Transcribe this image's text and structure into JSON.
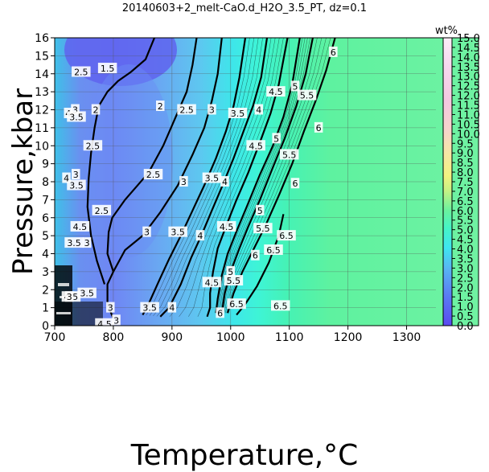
{
  "chart_data": {
    "type": "contour",
    "title": "20140603+2_melt-CaO.d_H2O_3.5_PT, dz=0.1",
    "xlabel": "Temperature,°C",
    "ylabel": "Pressure,kbar",
    "xlim": [
      700,
      1350
    ],
    "ylim": [
      0,
      16
    ],
    "xticks": [
      700,
      800,
      900,
      1000,
      1100,
      1200,
      1300
    ],
    "yticks": [
      0,
      1,
      2,
      3,
      4,
      5,
      6,
      7,
      8,
      9,
      10,
      11,
      12,
      13,
      14,
      15,
      16
    ],
    "grid": true,
    "colorbar": {
      "label": "wt%",
      "min": 0.0,
      "max": 15.0,
      "ticks": [
        "0.0",
        "0.5",
        "1.0",
        "1.5",
        "2.0",
        "2.5",
        "3.0",
        "3.5",
        "4.0",
        "4.5",
        "5.0",
        "5.5",
        "6.0",
        "6.5",
        "7.0",
        "7.5",
        "8.0",
        "8.5",
        "9.0",
        "9.5",
        "10.0",
        "10.5",
        "11.0",
        "11.5",
        "12.0",
        "12.5",
        "13.0",
        "13.5",
        "14.0",
        "14.5",
        "15.0"
      ]
    },
    "contours": [
      {
        "level": "2",
        "points": [
          [
            785,
            2.3
          ],
          [
            772,
            3.6
          ],
          [
            762,
            5.0
          ],
          [
            756,
            6.6
          ],
          [
            758,
            8.2
          ],
          [
            762,
            9.6
          ],
          [
            768,
            11.0
          ],
          [
            775,
            12.2
          ],
          [
            790,
            13.0
          ],
          [
            808,
            13.6
          ],
          [
            830,
            14.1
          ],
          [
            855,
            14.8
          ],
          [
            870,
            16
          ]
        ]
      },
      {
        "level": "2.5",
        "points": [
          [
            800,
            3.0
          ],
          [
            790,
            4.0
          ],
          [
            792,
            5.2
          ],
          [
            798,
            6.0
          ],
          [
            820,
            7.0
          ],
          [
            860,
            8.5
          ],
          [
            885,
            10.0
          ],
          [
            905,
            11.5
          ],
          [
            925,
            13.0
          ],
          [
            935,
            14.5
          ],
          [
            942,
            16
          ]
        ]
      },
      {
        "level": "3",
        "points": [
          [
            800,
            0.4
          ],
          [
            790,
            1.2
          ],
          [
            790,
            2.3
          ],
          [
            800,
            3.0
          ],
          [
            820,
            4.2
          ],
          [
            850,
            5.0
          ],
          [
            880,
            6.3
          ],
          [
            910,
            7.8
          ],
          [
            935,
            9.5
          ],
          [
            955,
            11.0
          ],
          [
            968,
            12.5
          ],
          [
            978,
            14.0
          ],
          [
            985,
            16
          ]
        ]
      },
      {
        "level": "3.5",
        "points": [
          [
            850,
            0.6
          ],
          [
            860,
            1.2
          ],
          [
            878,
            2.5
          ],
          [
            895,
            3.7
          ],
          [
            915,
            5.0
          ],
          [
            935,
            6.4
          ],
          [
            955,
            7.8
          ],
          [
            975,
            9.3
          ],
          [
            992,
            10.8
          ],
          [
            1005,
            12.2
          ],
          [
            1015,
            13.8
          ],
          [
            1025,
            16
          ]
        ]
      },
      {
        "level": "4",
        "points": [
          [
            880,
            0.5
          ],
          [
            895,
            1.0
          ],
          [
            915,
            2.3
          ],
          [
            933,
            3.8
          ],
          [
            950,
            5.0
          ],
          [
            968,
            6.4
          ],
          [
            985,
            7.7
          ],
          [
            1005,
            9.3
          ],
          [
            1022,
            10.8
          ],
          [
            1038,
            12.2
          ],
          [
            1052,
            13.8
          ],
          [
            1062,
            16
          ]
        ]
      },
      {
        "level": "4.5",
        "points": [
          [
            960,
            0.5
          ],
          [
            965,
            1.0
          ],
          [
            965,
            1.8
          ],
          [
            970,
            3.0
          ],
          [
            978,
            4.3
          ],
          [
            993,
            5.6
          ],
          [
            1010,
            7.0
          ],
          [
            1030,
            8.5
          ],
          [
            1050,
            10.2
          ],
          [
            1068,
            11.8
          ],
          [
            1082,
            13.4
          ],
          [
            1097,
            16
          ]
        ]
      },
      {
        "level": "5",
        "points": [
          [
            975,
            0.7
          ],
          [
            978,
            1.5
          ],
          [
            985,
            2.8
          ],
          [
            995,
            4.0
          ],
          [
            1012,
            5.4
          ],
          [
            1030,
            6.8
          ],
          [
            1050,
            8.4
          ],
          [
            1072,
            10.0
          ],
          [
            1090,
            11.6
          ],
          [
            1105,
            13.4
          ],
          [
            1118,
            16
          ]
        ]
      },
      {
        "level": "5.5",
        "points": [
          [
            985,
            0.7
          ],
          [
            990,
            1.8
          ],
          [
            1000,
            3.0
          ],
          [
            1015,
            4.3
          ],
          [
            1030,
            5.5
          ],
          [
            1050,
            7.0
          ],
          [
            1072,
            8.8
          ],
          [
            1092,
            10.4
          ],
          [
            1112,
            12.2
          ],
          [
            1128,
            14.0
          ],
          [
            1140,
            16
          ]
        ]
      },
      {
        "level": "6",
        "points": [
          [
            995,
            0.7
          ],
          [
            1005,
            1.8
          ],
          [
            1020,
            3.0
          ],
          [
            1040,
            4.3
          ],
          [
            1060,
            5.6
          ],
          [
            1083,
            7.3
          ],
          [
            1105,
            9.0
          ],
          [
            1125,
            10.8
          ],
          [
            1145,
            12.5
          ],
          [
            1163,
            14.2
          ],
          [
            1178,
            16
          ]
        ]
      },
      {
        "level": "6.5",
        "points": [
          [
            1010,
            0.6
          ],
          [
            1025,
            1.2
          ],
          [
            1045,
            2.2
          ],
          [
            1065,
            3.5
          ],
          [
            1082,
            5.0
          ],
          [
            1090,
            6.2
          ]
        ]
      }
    ],
    "contour_labels": [
      {
        "text": "1.5",
        "x": 790,
        "y": 14.3
      },
      {
        "text": "2",
        "x": 770,
        "y": 12.0
      },
      {
        "text": "2.5",
        "x": 745,
        "y": 14.1
      },
      {
        "text": "2.5",
        "x": 765,
        "y": 10.0
      },
      {
        "text": "2.5",
        "x": 780,
        "y": 6.4
      },
      {
        "text": "2.5",
        "x": 868,
        "y": 8.4
      },
      {
        "text": "2.5",
        "x": 925,
        "y": 12.0
      },
      {
        "text": "2",
        "x": 880,
        "y": 12.2
      },
      {
        "text": "3",
        "x": 755,
        "y": 4.6
      },
      {
        "text": "3",
        "x": 857,
        "y": 5.2
      },
      {
        "text": "3",
        "x": 920,
        "y": 8.0
      },
      {
        "text": "3",
        "x": 968,
        "y": 12.0
      },
      {
        "text": "3",
        "x": 795,
        "y": 1.0
      },
      {
        "text": "3",
        "x": 805,
        "y": 0.3
      },
      {
        "text": "3.5",
        "x": 1012,
        "y": 11.8
      },
      {
        "text": "3.5",
        "x": 968,
        "y": 8.2
      },
      {
        "text": "3.5",
        "x": 910,
        "y": 5.2
      },
      {
        "text": "3.5",
        "x": 862,
        "y": 1.0
      },
      {
        "text": "3.5",
        "x": 755,
        "y": 1.8
      },
      {
        "text": "4",
        "x": 1048,
        "y": 12.0
      },
      {
        "text": "4",
        "x": 990,
        "y": 8.0
      },
      {
        "text": "4",
        "x": 948,
        "y": 5.0
      },
      {
        "text": "4",
        "x": 900,
        "y": 1.0
      },
      {
        "text": "4.5",
        "x": 1077,
        "y": 13.0
      },
      {
        "text": "4.5",
        "x": 1043,
        "y": 10.0
      },
      {
        "text": "4.5",
        "x": 993,
        "y": 5.5
      },
      {
        "text": "4.5",
        "x": 968,
        "y": 2.4
      },
      {
        "text": "4.5",
        "x": 743,
        "y": 5.5
      },
      {
        "text": "4.5",
        "x": 728,
        "y": 1.6
      },
      {
        "text": "4.5",
        "x": 785,
        "y": 0.1
      },
      {
        "text": "5",
        "x": 1110,
        "y": 13.3
      },
      {
        "text": "5",
        "x": 1078,
        "y": 10.4
      },
      {
        "text": "5",
        "x": 1050,
        "y": 6.4
      },
      {
        "text": "5",
        "x": 1000,
        "y": 3.0
      },
      {
        "text": "5.5",
        "x": 1130,
        "y": 12.8
      },
      {
        "text": "5.5",
        "x": 1100,
        "y": 9.5
      },
      {
        "text": "5.5",
        "x": 1055,
        "y": 5.4
      },
      {
        "text": "5.5",
        "x": 1005,
        "y": 2.5
      },
      {
        "text": "6",
        "x": 1175,
        "y": 15.2
      },
      {
        "text": "6",
        "x": 1150,
        "y": 11.0
      },
      {
        "text": "6",
        "x": 1110,
        "y": 7.9
      },
      {
        "text": "6",
        "x": 1042,
        "y": 3.9
      },
      {
        "text": "6",
        "x": 982,
        "y": 0.7
      },
      {
        "text": "6.5",
        "x": 1073,
        "y": 4.2
      },
      {
        "text": "6.5",
        "x": 1095,
        "y": 5.0
      },
      {
        "text": "6.5",
        "x": 1010,
        "y": 1.2
      },
      {
        "text": "6.5",
        "x": 1085,
        "y": 1.1
      },
      {
        "text": "4",
        "x": 723,
        "y": 11.8
      },
      {
        "text": "3",
        "x": 735,
        "y": 12.0
      },
      {
        "text": "3.5",
        "x": 737,
        "y": 11.6
      },
      {
        "text": "3",
        "x": 736,
        "y": 8.4
      },
      {
        "text": "3.5",
        "x": 737,
        "y": 7.8
      },
      {
        "text": "4",
        "x": 720,
        "y": 8.2
      },
      {
        "text": "3.5",
        "x": 733,
        "y": 4.6
      },
      {
        "text": "3",
        "x": 725,
        "y": 1.6
      }
    ]
  }
}
